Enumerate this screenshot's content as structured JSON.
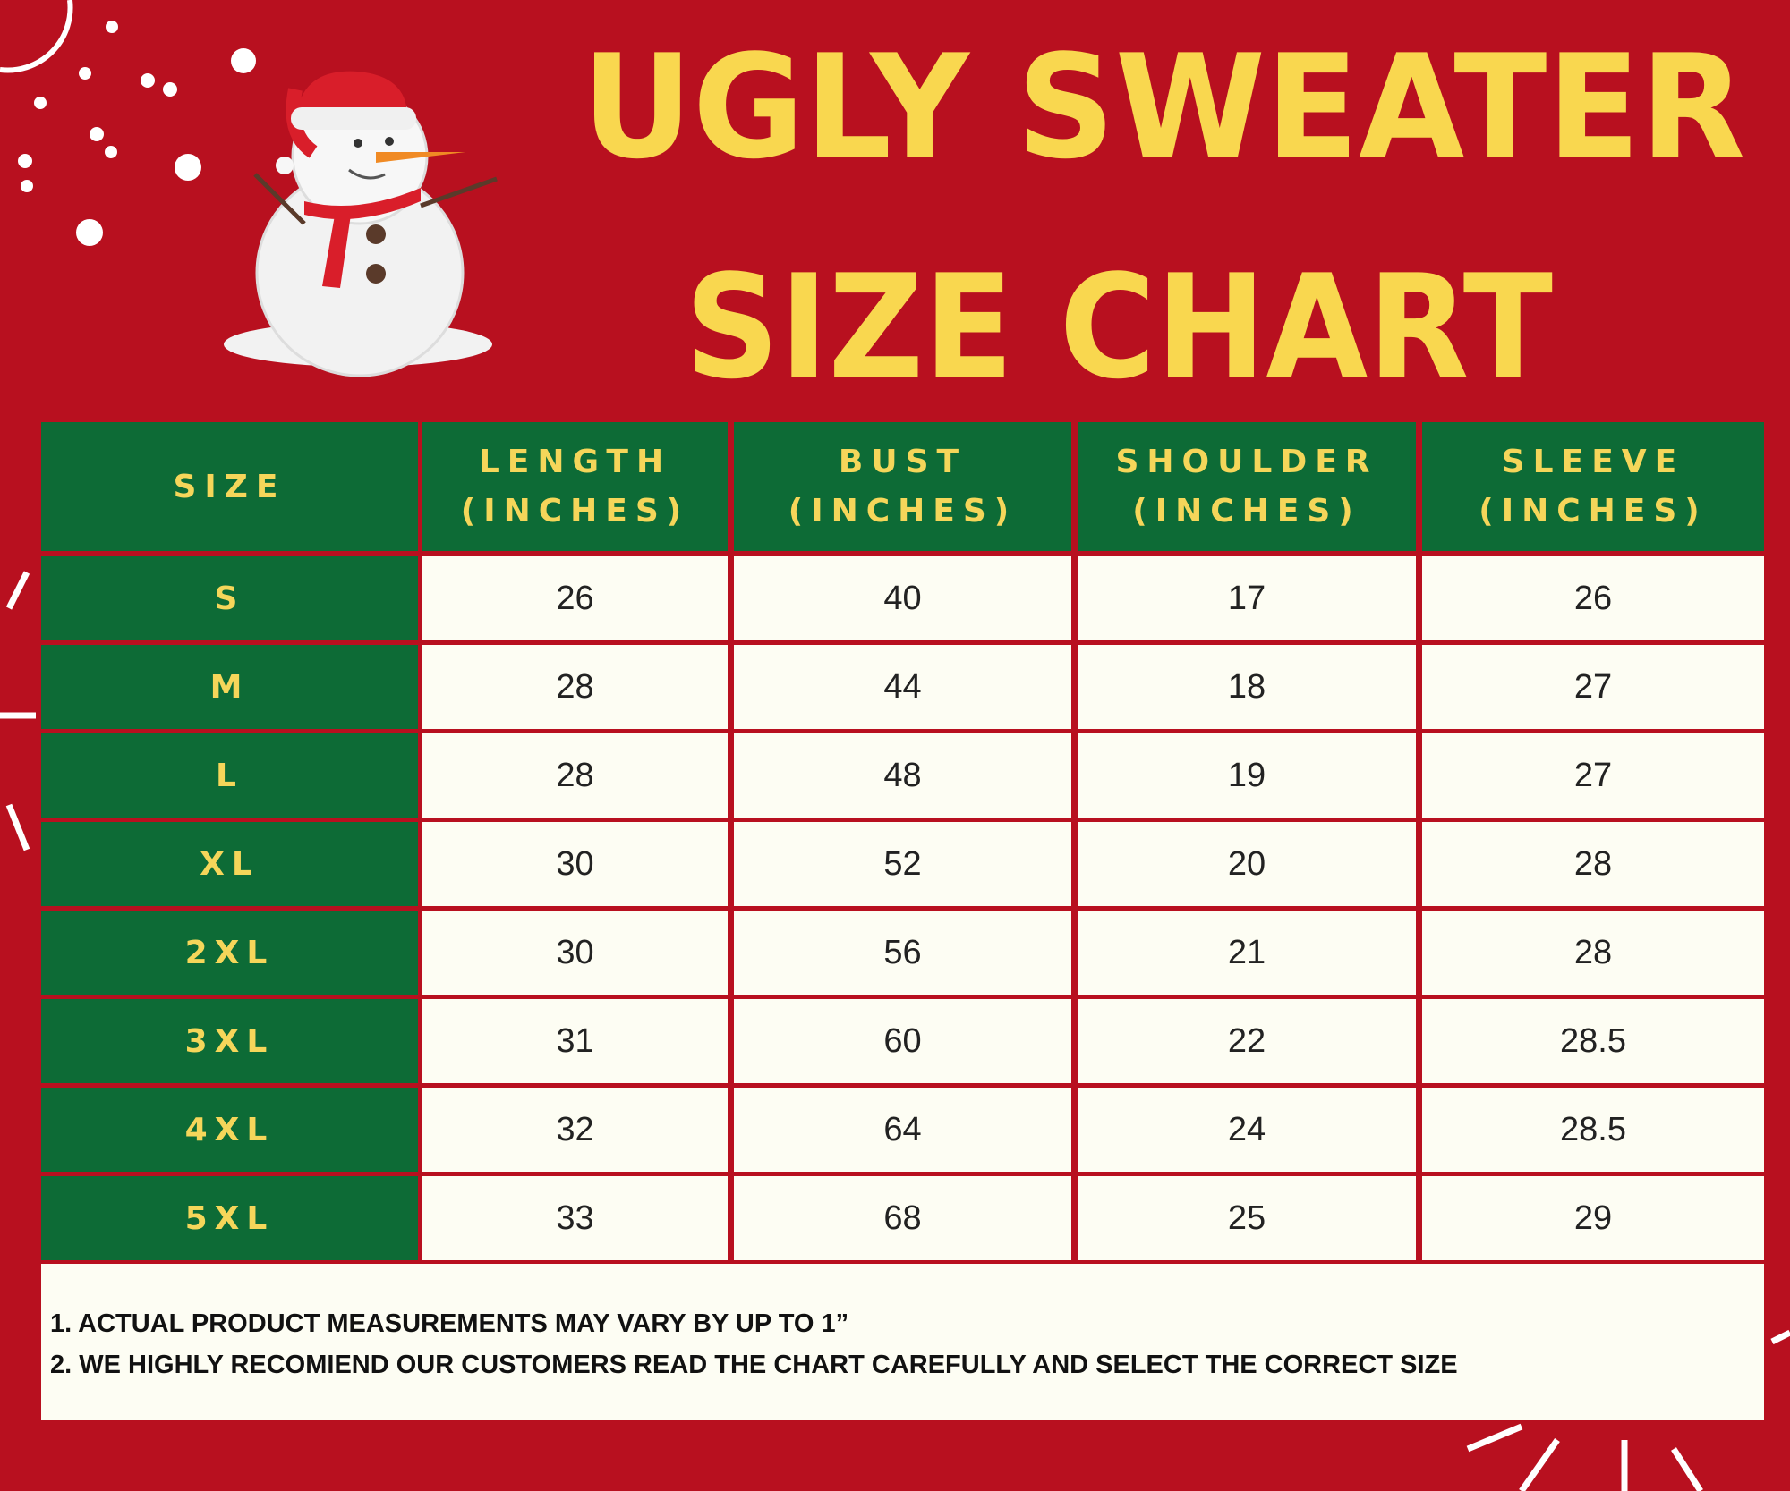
{
  "header": {
    "title_lines": [
      "UGLY SWEATER",
      "SIZE CHART"
    ]
  },
  "table": {
    "columns": [
      [
        "SIZE"
      ],
      [
        "LENGTH",
        "(INCHES)"
      ],
      [
        "BUST",
        "(INCHES)"
      ],
      [
        "SHOULDER",
        "(INCHES)"
      ],
      [
        "SLEEVE",
        "(INCHES)"
      ]
    ],
    "rows": [
      [
        "S",
        26,
        40,
        17,
        26
      ],
      [
        "M",
        28,
        44,
        18,
        27
      ],
      [
        "L",
        28,
        48,
        19,
        27
      ],
      [
        "XL",
        30,
        52,
        20,
        28
      ],
      [
        "2XL",
        30,
        56,
        21,
        28
      ],
      [
        "3XL",
        31,
        60,
        22,
        28.5
      ],
      [
        "4XL",
        32,
        64,
        24,
        28.5
      ],
      [
        "5XL",
        33,
        68,
        25,
        29
      ]
    ]
  },
  "notes": [
    "1. ACTUAL PRODUCT MEASUREMENTS MAY VARY BY UP TO 1”",
    "2. WE HIGHLY RECOMIEND OUR CUSTOMERS READ THE CHART CAREFULLY AND SELECT THE CORRECT SIZE"
  ]
}
